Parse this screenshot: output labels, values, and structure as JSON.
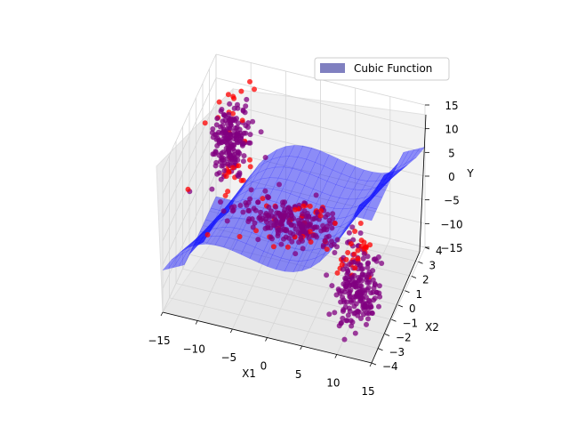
{
  "chart_data": {
    "type": "scatter",
    "title": "",
    "xlabel": "X1",
    "ylabel": "X2",
    "zlabel": "Y",
    "xlim": [
      -15,
      15
    ],
    "ylim": [
      -4,
      4
    ],
    "zlim": [
      -15,
      15
    ],
    "x_ticks": [
      "−15",
      "−10",
      "−5",
      "0",
      "5",
      "10",
      "15"
    ],
    "y_ticks": [
      "−4",
      "−3",
      "−2",
      "−1",
      "0",
      "1",
      "2",
      "3",
      "4"
    ],
    "z_ticks": [
      "−15",
      "−10",
      "−5",
      "0",
      "5",
      "10",
      "15"
    ],
    "grid": true,
    "legend_position": "upper-right",
    "surface": {
      "name": "Cubic Function",
      "color": "#0000ff",
      "legend_color": "#8080c0"
    },
    "scatter_colors": {
      "primary": "#800080",
      "outlier": "#ff0000"
    },
    "clusters": [
      {
        "x1_center": -10,
        "x2_center": 1,
        "y_center": 8,
        "x1_spread": 1.2,
        "x2_spread": 0.8,
        "y_spread": 4,
        "points": 220
      },
      {
        "x1_center": 0,
        "x2_center": 0,
        "y_center": -3,
        "x1_spread": 4.0,
        "x2_spread": 0.6,
        "y_spread": 1.5,
        "points": 260
      },
      {
        "x1_center": 10,
        "x2_center": -1,
        "y_center": -10,
        "x1_spread": 1.2,
        "x2_spread": 0.8,
        "y_spread": 4,
        "points": 220
      }
    ]
  }
}
